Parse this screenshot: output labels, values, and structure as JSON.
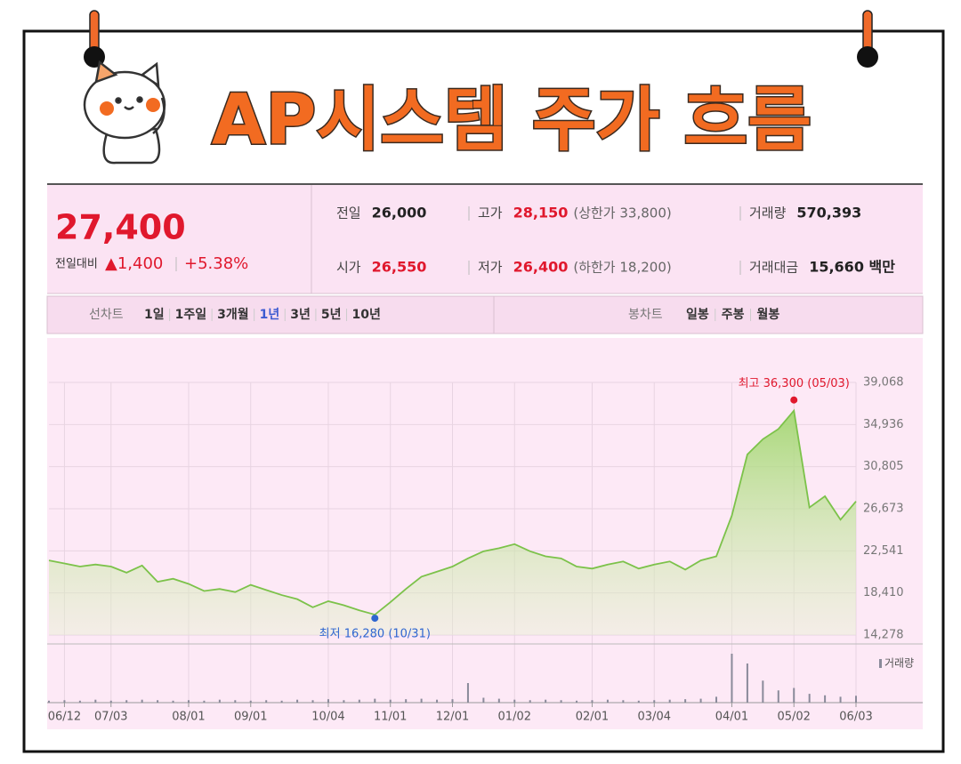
{
  "header": {
    "title": "AP시스템 주가 흐름"
  },
  "quote": {
    "price": "27,400",
    "change_label": "전일대비",
    "change": "▲1,400",
    "change_pct": "+5.38%",
    "rows": [
      [
        {
          "label": "전일",
          "value": "26,000",
          "color": "#222"
        },
        {
          "label": "고가",
          "value": "28,150",
          "note": "(상한가 33,800)",
          "color": "#e0182d"
        },
        {
          "label": "거래량",
          "value": "570,393",
          "color": "#222"
        }
      ],
      [
        {
          "label": "시가",
          "value": "26,550",
          "color": "#e0182d"
        },
        {
          "label": "저가",
          "value": "26,400",
          "note": "(하한가 18,200)",
          "color": "#e0182d"
        },
        {
          "label": "거래대금",
          "value": "15,660 백만",
          "color": "#222"
        }
      ]
    ]
  },
  "tabs": {
    "line_label": "선차트",
    "line_periods": [
      "1일",
      "1주일",
      "3개월",
      "1년",
      "3년",
      "5년",
      "10년"
    ],
    "selected": 3,
    "candle_label": "봉차트",
    "candle_periods": [
      "일봉",
      "주봉",
      "월봉"
    ]
  },
  "chart_data": {
    "type": "line",
    "categories": [
      null,
      "06/12",
      null,
      null,
      "07/03",
      null,
      null,
      null,
      null,
      "08/01",
      null,
      null,
      null,
      "09/01",
      null,
      null,
      null,
      null,
      "10/04",
      null,
      null,
      null,
      "11/01",
      null,
      null,
      null,
      "12/01",
      null,
      null,
      null,
      "01/02",
      null,
      null,
      null,
      null,
      "02/01",
      null,
      null,
      null,
      "03/04",
      null,
      null,
      null,
      null,
      "04/01",
      null,
      null,
      null,
      "05/02",
      null,
      null,
      null,
      "06/03"
    ],
    "series": [
      {
        "name": "주가",
        "color": "#7cc24a",
        "values": [
          21600,
          21300,
          21000,
          21200,
          21000,
          20400,
          21100,
          19500,
          19800,
          19300,
          18600,
          18800,
          18500,
          19200,
          18700,
          18200,
          17800,
          17000,
          17600,
          17200,
          16700,
          16280,
          17500,
          18800,
          20000,
          20500,
          21000,
          21800,
          22500,
          22800,
          23200,
          22500,
          22000,
          21800,
          21000,
          20800,
          21200,
          21500,
          20800,
          21200,
          21500,
          20700,
          21600,
          22000,
          26000,
          32000,
          33500,
          34500,
          36300,
          26800,
          27900,
          25600,
          27400
        ]
      }
    ],
    "volume": {
      "name": "거래량",
      "color": "#8a8a9a",
      "ylim": [
        0,
        100
      ],
      "values": [
        4,
        5,
        4,
        6,
        4,
        5,
        6,
        5,
        4,
        5,
        4,
        6,
        5,
        4,
        5,
        4,
        6,
        5,
        7,
        5,
        6,
        8,
        6,
        7,
        8,
        6,
        7,
        40,
        10,
        8,
        6,
        5,
        6,
        5,
        4,
        5,
        6,
        5,
        4,
        5,
        6,
        7,
        8,
        12,
        100,
        80,
        45,
        25,
        30,
        18,
        15,
        12,
        14
      ]
    },
    "annotations": [
      "최고 36,300 (05/03)",
      "최저 16,280 (10/31)"
    ],
    "ylim": [
      14278,
      39068
    ],
    "yticks": [
      {
        "value": 14278,
        "label": "14,278"
      },
      {
        "value": 18410,
        "label": "18,410"
      },
      {
        "value": 22541,
        "label": "22,541"
      },
      {
        "value": 26673,
        "label": "26,673"
      },
      {
        "value": 30805,
        "label": "30,805"
      },
      {
        "value": 34936,
        "label": "34,936"
      },
      {
        "value": 39068,
        "label": "39,068"
      }
    ],
    "grid": true
  }
}
